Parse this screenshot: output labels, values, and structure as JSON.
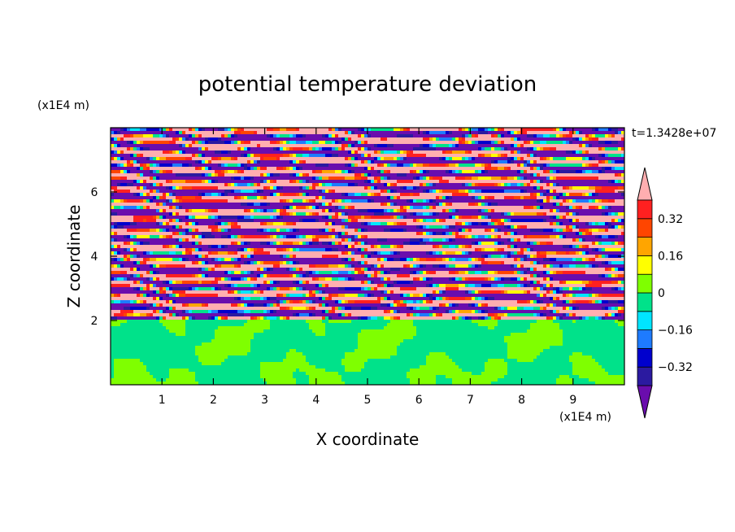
{
  "chart_data": {
    "type": "heatmap",
    "title": "potential temperature deviation",
    "xlabel": "X coordinate",
    "ylabel": "Z coordinate",
    "x_unit": "(x1E4 m)",
    "y_unit": "(x1E4 m)",
    "time_label": "t=1.3428e+07",
    "xlim": [
      0,
      10
    ],
    "ylim": [
      0,
      8
    ],
    "x_ticks": [
      1,
      2,
      3,
      4,
      5,
      6,
      7,
      8,
      9
    ],
    "y_ticks": [
      2,
      4,
      6
    ],
    "x_tick_labels": [
      "1",
      "2",
      "3",
      "4",
      "5",
      "6",
      "7",
      "8",
      "9"
    ],
    "y_tick_labels": [
      "2",
      "4",
      "6"
    ],
    "colorbar": {
      "levels": [
        -0.4,
        -0.32,
        -0.24,
        -0.16,
        -0.08,
        0,
        0.08,
        0.16,
        0.24,
        0.32,
        0.4
      ],
      "tick_values": [
        -0.32,
        -0.16,
        0,
        0.16,
        0.32
      ],
      "tick_labels": [
        "−0.32",
        "−0.16",
        "0",
        "0.16",
        "0.32"
      ],
      "colors": [
        "#6a0dad",
        "#2b1aa0",
        "#0000cd",
        "#1e7bff",
        "#00e5ff",
        "#00e28a",
        "#7fff00",
        "#ffff00",
        "#ffa500",
        "#ff4500",
        "#ff2020",
        "#ffaeb0"
      ],
      "extend": "both"
    },
    "field_description_regions": [
      {
        "z_range": [
          0,
          2
        ],
        "pattern": "green/light-green mixed, near zero"
      },
      {
        "z_range": [
          2,
          8
        ],
        "pattern": "alternating purple and pink horizontal bands with multicolor edges"
      }
    ]
  }
}
